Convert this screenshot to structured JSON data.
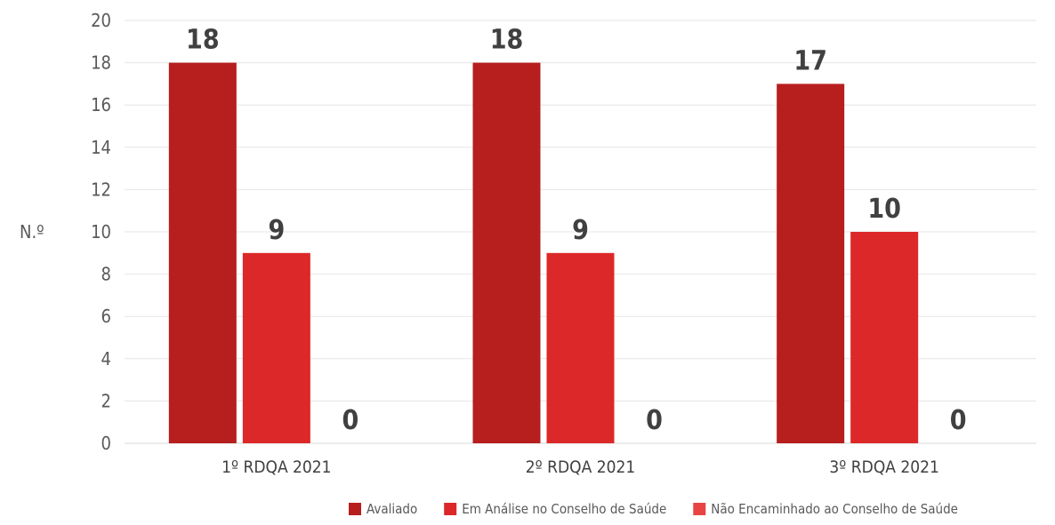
{
  "chart_data": {
    "type": "bar",
    "ylabel": "N.º",
    "ylim": [
      0,
      20
    ],
    "yticks": [
      0,
      2,
      4,
      6,
      8,
      10,
      12,
      14,
      16,
      18,
      20
    ],
    "grid": true,
    "legend_position": "bottom",
    "categories": [
      "1º RDQA 2021",
      "2º RDQA 2021",
      "3º RDQA 2021"
    ],
    "series": [
      {
        "name": "Avaliado",
        "values": [
          18,
          18,
          17
        ],
        "color": "#B71E1E"
      },
      {
        "name": "Em Análise no Conselho de Saúde",
        "values": [
          9,
          9,
          10
        ],
        "color": "#DC2828"
      },
      {
        "name": "Não Encaminhado ao Conselho de Saúde",
        "values": [
          0,
          0,
          0
        ],
        "color": "#E84444"
      }
    ]
  }
}
